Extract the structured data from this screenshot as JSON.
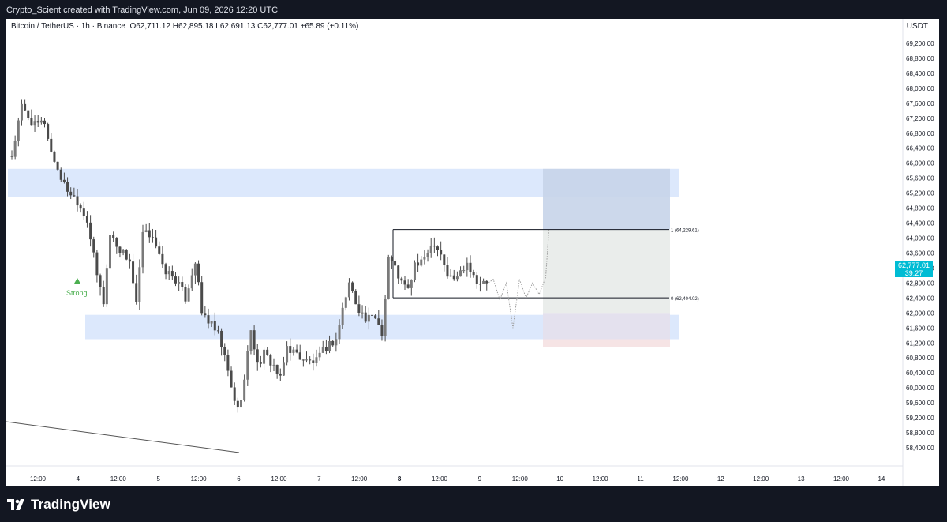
{
  "header": {
    "author_line": "Crypto_Scient created with TradingView.com, Jun 09, 2026 12:20 UTC"
  },
  "legend": {
    "symbol": "Bitcoin / TetherUS · 1h · Binance",
    "open": "O62,711.12",
    "high": "H62,895.18",
    "low": "L62,691.13",
    "close": "C62,777.01",
    "change": "+65.89 (+0.11%)"
  },
  "currency": "USDT",
  "last_price": {
    "value": "62,777.01",
    "countdown": "39:27"
  },
  "signal_label": "Strong",
  "fib_levels": [
    {
      "label": "1 (64,229.61)",
      "price": 64229.61
    },
    {
      "label": "0 (62,404.02)",
      "price": 62404.02
    }
  ],
  "brand": "TradingView",
  "colors": {
    "background": "#131722",
    "chart_bg": "#ffffff",
    "zone_fill": "#d6e4fb",
    "target_fill": "#e9ecea",
    "target_top": "#c6d4e9",
    "stop_fill": "#f5e3e4",
    "candle": "#4a4a4a",
    "price_tag": "#00bcd4",
    "signal": "#4caf50"
  },
  "icons": {
    "logo": "tradingview-logo-icon",
    "signal": "up-triangle-icon"
  },
  "chart_data": {
    "type": "candlestick",
    "title": "Bitcoin / TetherUS · 1h · Binance",
    "ylabel": "USDT",
    "ylim": [
      58200,
      69600
    ],
    "grid": false,
    "y_ticks": [
      "69,200.00",
      "68,800.00",
      "68,400.00",
      "68,000.00",
      "67,600.00",
      "67,200.00",
      "66,800.00",
      "66,400.00",
      "66,000.00",
      "65,600.00",
      "65,200.00",
      "64,800.00",
      "64,400.00",
      "64,000.00",
      "63,600.00",
      "63,200.00",
      "62,800.00",
      "62,400.00",
      "62,000.00",
      "61,600.00",
      "61,200.00",
      "60,800.00",
      "60,400.00",
      "60,000.00",
      "59,600.00",
      "59,200.00",
      "58,800.00",
      "58,400.00"
    ],
    "x_ticks": [
      "12:00",
      "4",
      "12:00",
      "5",
      "12:00",
      "6",
      "12:00",
      "7",
      "12:00",
      "8",
      "12:00",
      "9",
      "12:00",
      "10",
      "12:00",
      "11",
      "12:00",
      "12",
      "12:00",
      "13",
      "12:00",
      "14"
    ],
    "bold_x_tick": "8",
    "price_path": [
      [
        0,
        66200
      ],
      [
        3,
        67500
      ],
      [
        7,
        67000
      ],
      [
        10,
        67100
      ],
      [
        12,
        66300
      ],
      [
        16,
        65400
      ],
      [
        20,
        65000
      ],
      [
        23,
        64500
      ],
      [
        26,
        63000
      ],
      [
        28,
        62300
      ],
      [
        30,
        64100
      ],
      [
        33,
        63700
      ],
      [
        36,
        63400
      ],
      [
        38,
        62200
      ],
      [
        40,
        64100
      ],
      [
        43,
        64100
      ],
      [
        46,
        63200
      ],
      [
        50,
        62900
      ],
      [
        53,
        62400
      ],
      [
        56,
        63400
      ],
      [
        58,
        62000
      ],
      [
        60,
        61800
      ],
      [
        63,
        61400
      ],
      [
        65,
        60800
      ],
      [
        67,
        60000
      ],
      [
        69,
        59400
      ],
      [
        71,
        60200
      ],
      [
        73,
        61600
      ],
      [
        75,
        60600
      ],
      [
        77,
        60900
      ],
      [
        80,
        60600
      ],
      [
        82,
        60200
      ],
      [
        84,
        61100
      ],
      [
        87,
        60900
      ],
      [
        90,
        60700
      ],
      [
        93,
        60700
      ],
      [
        96,
        61100
      ],
      [
        99,
        61300
      ],
      [
        101,
        62100
      ],
      [
        103,
        62800
      ],
      [
        105,
        62300
      ],
      [
        108,
        61800
      ],
      [
        111,
        61900
      ],
      [
        113,
        61500
      ],
      [
        114,
        62400
      ],
      [
        115,
        63500
      ],
      [
        117,
        63200
      ],
      [
        119,
        62800
      ],
      [
        121,
        62600
      ],
      [
        123,
        63300
      ],
      [
        125,
        63300
      ],
      [
        127,
        63700
      ],
      [
        129,
        63900
      ],
      [
        131,
        63600
      ],
      [
        133,
        63000
      ],
      [
        135,
        62900
      ],
      [
        137,
        63100
      ],
      [
        139,
        63400
      ],
      [
        141,
        63000
      ],
      [
        143,
        62800
      ],
      [
        145,
        62777
      ]
    ],
    "forecast_path": [
      [
        145,
        62777
      ],
      [
        147,
        62900
      ],
      [
        149,
        62350
      ],
      [
        151,
        62800
      ],
      [
        153,
        61600
      ],
      [
        155,
        62900
      ],
      [
        157,
        62400
      ],
      [
        159,
        62800
      ],
      [
        161,
        62500
      ],
      [
        163,
        62950
      ],
      [
        164,
        64229
      ]
    ],
    "zones": [
      {
        "type": "supply",
        "from": 0,
        "to": 196,
        "low": 65100,
        "high": 65850
      },
      {
        "type": "demand",
        "from": 23,
        "to": 196,
        "low": 61300,
        "high": 61950
      }
    ],
    "range_box": {
      "from": 114,
      "to": 196,
      "high": 64229.61,
      "low": 62404.02
    },
    "trade_box": {
      "from": 157,
      "to": 196,
      "target": 65850,
      "entry": 62000,
      "stop": 61100
    },
    "trendline": [
      [
        0,
        58700
      ],
      [
        68,
        58250
      ]
    ]
  }
}
